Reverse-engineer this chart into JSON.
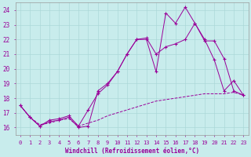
{
  "xlabel": "Windchill (Refroidissement éolien,°C)",
  "background_color": "#c8ecec",
  "grid_color": "#acd8d8",
  "line_color": "#990099",
  "xlim": [
    -0.5,
    23.5
  ],
  "ylim": [
    15.5,
    24.5
  ],
  "xticks": [
    0,
    1,
    2,
    3,
    4,
    5,
    6,
    7,
    8,
    9,
    10,
    11,
    12,
    13,
    14,
    15,
    16,
    17,
    18,
    19,
    20,
    21,
    22,
    23
  ],
  "yticks": [
    16,
    17,
    18,
    19,
    20,
    21,
    22,
    23,
    24
  ],
  "series1_x": [
    0,
    1,
    2,
    3,
    4,
    5,
    6,
    7,
    8,
    9,
    10,
    11,
    12,
    13,
    14,
    15,
    16,
    17,
    18,
    19,
    20,
    21,
    22,
    23
  ],
  "series1_y": [
    17.5,
    16.7,
    16.1,
    16.4,
    16.5,
    16.7,
    16.0,
    16.1,
    18.5,
    19.0,
    19.8,
    21.0,
    22.0,
    22.0,
    19.8,
    23.8,
    23.1,
    24.2,
    23.1,
    22.0,
    20.6,
    18.5,
    19.2,
    18.2
  ],
  "series2_x": [
    0,
    1,
    2,
    3,
    4,
    5,
    6,
    7,
    8,
    9,
    10,
    11,
    12,
    13,
    14,
    15,
    16,
    17,
    18,
    19,
    20,
    21,
    22,
    23
  ],
  "series2_y": [
    17.5,
    16.7,
    16.1,
    16.5,
    16.6,
    16.8,
    16.1,
    17.2,
    18.3,
    18.9,
    19.8,
    21.0,
    22.0,
    22.1,
    21.0,
    21.5,
    21.7,
    22.0,
    23.1,
    21.9,
    21.9,
    20.7,
    18.5,
    18.2
  ],
  "series3_x": [
    0,
    1,
    2,
    3,
    4,
    5,
    6,
    7,
    8,
    9,
    10,
    11,
    12,
    13,
    14,
    15,
    16,
    17,
    18,
    19,
    20,
    21,
    22,
    23
  ],
  "series3_y": [
    17.5,
    16.7,
    16.2,
    16.3,
    16.5,
    16.6,
    16.1,
    16.3,
    16.5,
    16.8,
    17.0,
    17.2,
    17.4,
    17.6,
    17.8,
    17.9,
    18.0,
    18.1,
    18.2,
    18.3,
    18.3,
    18.3,
    18.4,
    18.2
  ]
}
